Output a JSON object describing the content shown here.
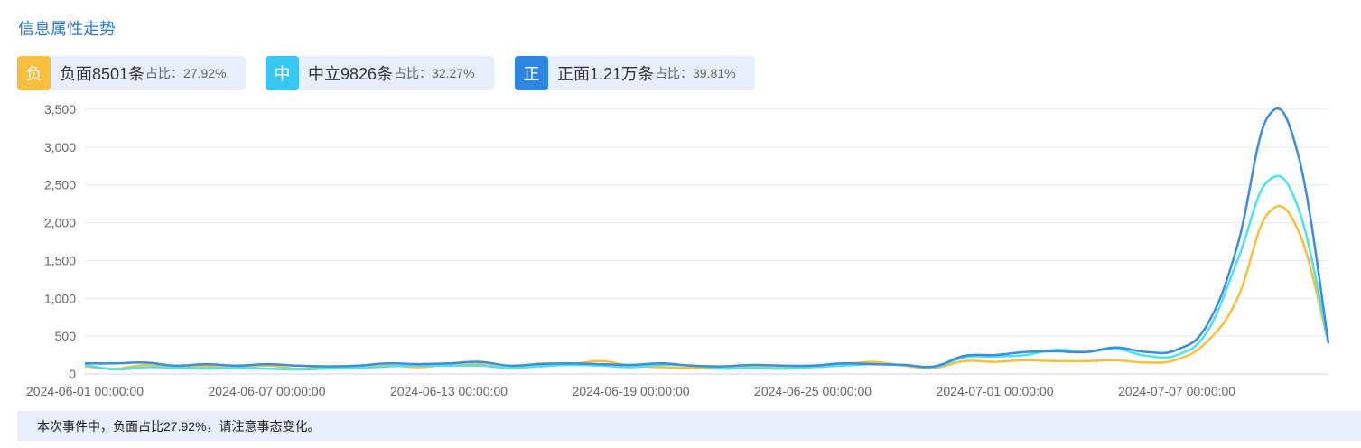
{
  "header": {
    "title": "信息属性走势"
  },
  "stats": [
    {
      "badge": "负",
      "label": "负面8501条",
      "ratio": "占比：27.92%",
      "color": "#f8bf3c"
    },
    {
      "badge": "中",
      "label": "中立9826条",
      "ratio": "占比：32.27%",
      "color": "#38c6f2"
    },
    {
      "badge": "正",
      "label": "正面1.21万条",
      "ratio": "占比：39.81%",
      "color": "#2d85e4"
    }
  ],
  "footer": {
    "note": "本次事件中，负面占比27.92%，请注意事态变化。"
  },
  "chart_data": {
    "type": "line",
    "grid": true,
    "ylim": [
      0,
      3500
    ],
    "yticks": [
      "0",
      "500",
      "1,000",
      "1,500",
      "2,000",
      "2,500",
      "3,000",
      "3,500"
    ],
    "x_tick_labels": [
      "2024-06-01 00:00:00",
      "2024-06-07 00:00:00",
      "2024-06-13 00:00:00",
      "2024-06-19 00:00:00",
      "2024-06-25 00:00:00",
      "2024-07-01 00:00:00",
      "2024-07-07 00:00:00"
    ],
    "x": [
      "2024-06-01",
      "2024-06-02",
      "2024-06-03",
      "2024-06-04",
      "2024-06-05",
      "2024-06-06",
      "2024-06-07",
      "2024-06-08",
      "2024-06-09",
      "2024-06-10",
      "2024-06-11",
      "2024-06-12",
      "2024-06-13",
      "2024-06-14",
      "2024-06-15",
      "2024-06-16",
      "2024-06-17",
      "2024-06-18",
      "2024-06-19",
      "2024-06-20",
      "2024-06-21",
      "2024-06-22",
      "2024-06-23",
      "2024-06-24",
      "2024-06-25",
      "2024-06-26",
      "2024-06-27",
      "2024-06-28",
      "2024-06-29",
      "2024-06-30",
      "2024-07-01",
      "2024-07-02",
      "2024-07-03",
      "2024-07-04",
      "2024-07-05",
      "2024-07-06",
      "2024-07-07",
      "2024-07-08",
      "2024-07-09",
      "2024-07-10",
      "2024-07-11",
      "2024-07-12"
    ],
    "series": [
      {
        "color": "#f8bf3c",
        "values": [
          100,
          70,
          120,
          90,
          100,
          80,
          110,
          70,
          90,
          80,
          110,
          90,
          120,
          130,
          80,
          140,
          130,
          170,
          110,
          90,
          80,
          70,
          90,
          80,
          110,
          130,
          160,
          110,
          80,
          170,
          160,
          180,
          170,
          170,
          180,
          150,
          190,
          430,
          1000,
          2120,
          1900,
          400
        ]
      },
      {
        "color": "#4be3ef",
        "values": [
          120,
          60,
          90,
          80,
          70,
          80,
          70,
          60,
          70,
          80,
          100,
          110,
          110,
          110,
          80,
          100,
          120,
          110,
          90,
          120,
          110,
          70,
          80,
          70,
          90,
          110,
          130,
          120,
          90,
          220,
          230,
          250,
          320,
          290,
          330,
          240,
          250,
          560,
          1500,
          2550,
          2200,
          400
        ]
      },
      {
        "color": "#3c8ce0",
        "values": [
          140,
          140,
          150,
          110,
          130,
          110,
          130,
          110,
          100,
          110,
          140,
          130,
          140,
          160,
          110,
          130,
          140,
          130,
          120,
          140,
          110,
          100,
          120,
          110,
          110,
          140,
          130,
          120,
          100,
          240,
          250,
          290,
          300,
          290,
          350,
          290,
          320,
          650,
          1700,
          3400,
          2900,
          410
        ]
      }
    ]
  }
}
